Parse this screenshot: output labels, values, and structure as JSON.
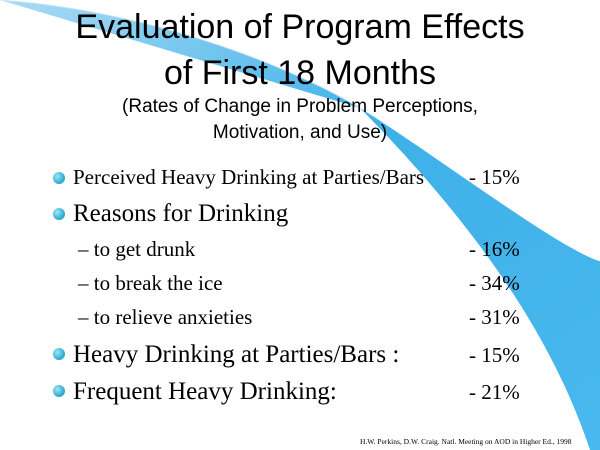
{
  "title": {
    "line1": "Evaluation of Program Effects",
    "line2": "of First 18 Months"
  },
  "subtitle": {
    "line1": "(Rates of Change in Problem Perceptions,",
    "line2": "Motivation, and Use)"
  },
  "items": [
    {
      "label": "Perceived Heavy Drinking at Parties/Bars",
      "value": "- 15%"
    },
    {
      "label": "Reasons for Drinking"
    },
    {
      "label": "Heavy Drinking at Parties/Bars :",
      "value": "- 15%"
    },
    {
      "label": "Frequent Heavy Drinking:",
      "value": "- 21%"
    }
  ],
  "reasons": [
    {
      "label": "– to get drunk",
      "value": "- 16%"
    },
    {
      "label": "– to break the ice",
      "value": "- 34%"
    },
    {
      "label": "– to relieve anxieties",
      "value": "- 31%"
    }
  ],
  "citation": "H.W. Perkins, D.W. Craig. Natl. Meeting on AOD in Higher Ed., 1998",
  "colors": {
    "swoosh": "#3fb0e8",
    "bullet": "#3cb4d6"
  },
  "icons": {
    "bullet": "bullet-dot-icon"
  }
}
